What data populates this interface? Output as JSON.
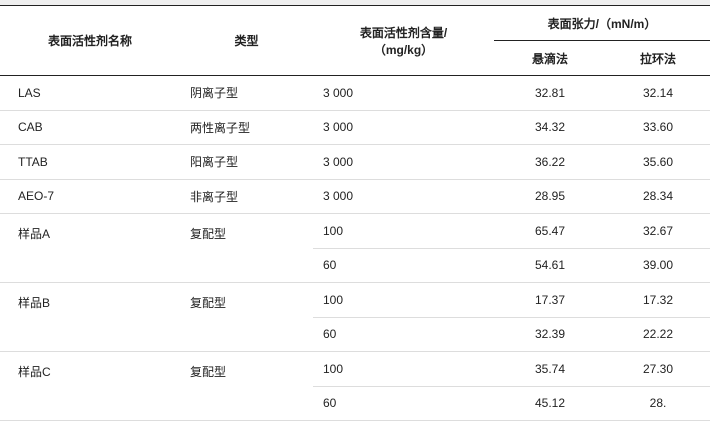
{
  "headers": {
    "name": "表面活性剂名称",
    "type": "类型",
    "content": "表面活性剂含量/",
    "content_unit": "（mg/kg）",
    "tension": "表面张力/（mN/m）",
    "pendant": "悬滴法",
    "ring": "拉环法"
  },
  "rows": [
    {
      "name": "LAS",
      "type": "阴离子型",
      "content": "3 000",
      "pendant": "32.81",
      "ring": "32.14"
    },
    {
      "name": "CAB",
      "type": "两性离子型",
      "content": "3 000",
      "pendant": "34.32",
      "ring": "33.60"
    },
    {
      "name": "TTAB",
      "type": "阳离子型",
      "content": "3 000",
      "pendant": "36.22",
      "ring": "35.60"
    },
    {
      "name": "AEO-7",
      "type": "非离子型",
      "content": "3 000",
      "pendant": "28.95",
      "ring": "28.34"
    }
  ],
  "samples": [
    {
      "name": "样品A",
      "type": "复配型",
      "sub": [
        {
          "content": "100",
          "pendant": "65.47",
          "ring": "32.67"
        },
        {
          "content": "60",
          "pendant": "54.61",
          "ring": "39.00"
        }
      ]
    },
    {
      "name": "样品B",
      "type": "复配型",
      "sub": [
        {
          "content": "100",
          "pendant": "17.37",
          "ring": "17.32"
        },
        {
          "content": "60",
          "pendant": "32.39",
          "ring": "22.22"
        }
      ]
    },
    {
      "name": "样品C",
      "type": "复配型",
      "sub": [
        {
          "content": "100",
          "pendant": "35.74",
          "ring": "27.30"
        },
        {
          "content": "60",
          "pendant": "45.12",
          "ring": "28."
        }
      ]
    }
  ]
}
